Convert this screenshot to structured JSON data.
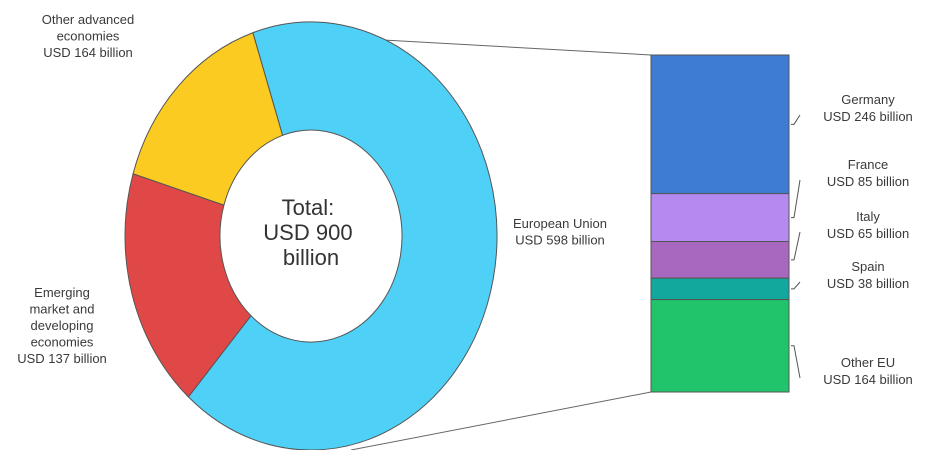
{
  "chart_data": [
    {
      "type": "pie",
      "variant": "donut",
      "center_label": [
        "Total:",
        "USD 900",
        "billion"
      ],
      "total": 900,
      "unit": "USD billion",
      "slices": [
        {
          "key": "eu",
          "label_lines": [
            "European Union",
            "USD 598 billion"
          ],
          "value": 598,
          "color": "#4fd1f7"
        },
        {
          "key": "other_adv",
          "label_lines": [
            "Other advanced",
            "economies",
            "USD 164 billion"
          ],
          "value": 164,
          "color": "#e04848"
        },
        {
          "key": "emerging",
          "label_lines": [
            "Emerging",
            "market and",
            "developing",
            "economies",
            "USD 137 billion"
          ],
          "value": 137,
          "color": "#fccb21"
        }
      ]
    },
    {
      "type": "bar",
      "variant": "stacked-100",
      "breakdown_of": "European Union",
      "unit": "USD billion",
      "series": [
        {
          "key": "germany",
          "label_lines": [
            "Germany",
            "USD 246 billion"
          ],
          "value": 246,
          "color": "#3e7bd3"
        },
        {
          "key": "france",
          "label_lines": [
            "France",
            "USD 85 billion"
          ],
          "value": 85,
          "color": "#b48af0"
        },
        {
          "key": "italy",
          "label_lines": [
            "Italy",
            "USD 65 billion"
          ],
          "value": 65,
          "color": "#a968c0"
        },
        {
          "key": "spain",
          "label_lines": [
            "Spain",
            "USD 38 billion"
          ],
          "value": 38,
          "color": "#13a89e"
        },
        {
          "key": "other_eu",
          "label_lines": [
            "Other EU",
            "USD 164 billion"
          ],
          "value": 164,
          "color": "#21c46a"
        }
      ]
    }
  ]
}
